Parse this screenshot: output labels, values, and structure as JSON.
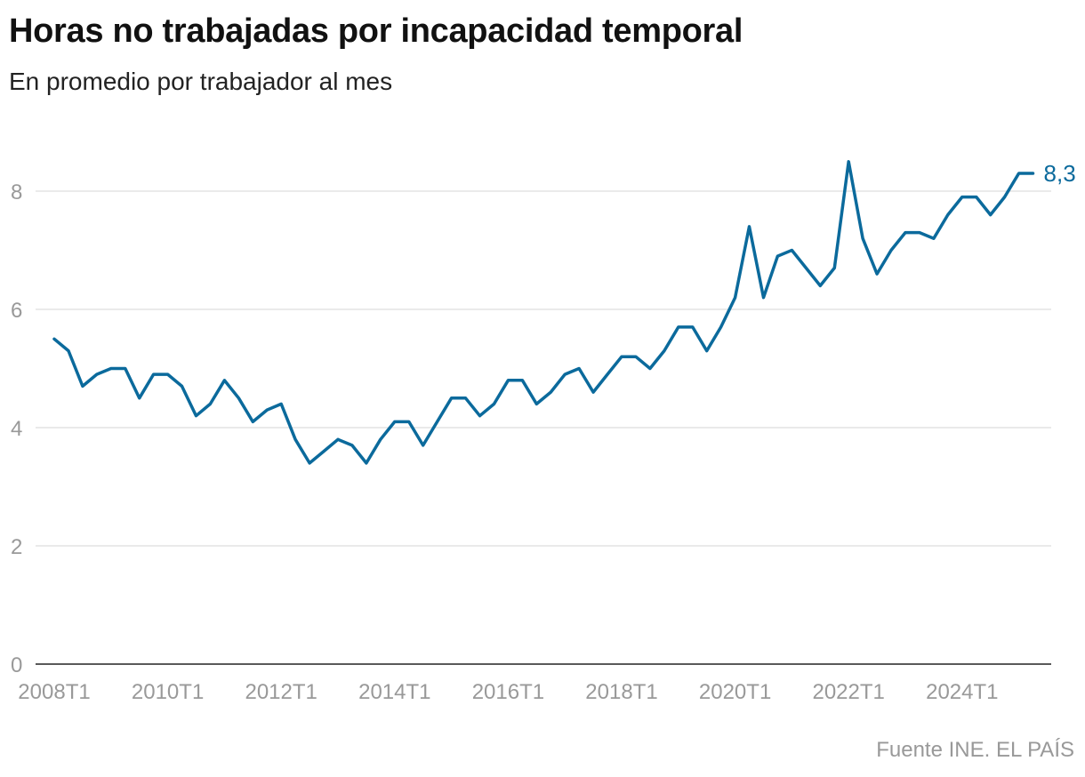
{
  "title": "Horas no trabajadas por incapacidad temporal",
  "subtitle": "En promedio por trabajador al mes",
  "source": "Fuente INE. EL PAÍS",
  "chart_data": {
    "type": "line",
    "title": "Horas no trabajadas por incapacidad temporal",
    "subtitle": "En promedio por trabajador al mes",
    "xlabel": "",
    "ylabel": "",
    "ylim": [
      0,
      8.8
    ],
    "yticks": [
      0,
      2,
      4,
      6,
      8
    ],
    "ytick_labels": [
      "0",
      "2",
      "4",
      "6",
      "8"
    ],
    "xtick_labels": [
      "2008T1",
      "2010T1",
      "2012T1",
      "2014T1",
      "2016T1",
      "2018T1",
      "2020T1",
      "2022T1",
      "2024T1"
    ],
    "grid": "horizontal",
    "color": "#0b6a9c",
    "start_period": "2008T1",
    "end_label": "8,3",
    "values": [
      5.5,
      5.3,
      4.7,
      4.9,
      5.0,
      5.0,
      4.5,
      4.9,
      4.9,
      4.7,
      4.2,
      4.4,
      4.8,
      4.5,
      4.1,
      4.3,
      4.4,
      3.8,
      3.4,
      3.6,
      3.8,
      3.7,
      3.4,
      3.8,
      4.1,
      4.1,
      3.7,
      4.1,
      4.5,
      4.5,
      4.2,
      4.4,
      4.8,
      4.8,
      4.4,
      4.6,
      4.9,
      5.0,
      4.6,
      4.9,
      5.2,
      5.2,
      5.0,
      5.3,
      5.7,
      5.7,
      5.3,
      5.7,
      6.2,
      7.4,
      6.2,
      6.9,
      7.0,
      6.7,
      6.4,
      6.7,
      8.5,
      7.2,
      6.6,
      7.0,
      7.3,
      7.3,
      7.2,
      7.6,
      7.9,
      7.9,
      7.6,
      7.9,
      8.3,
      8.3
    ]
  }
}
